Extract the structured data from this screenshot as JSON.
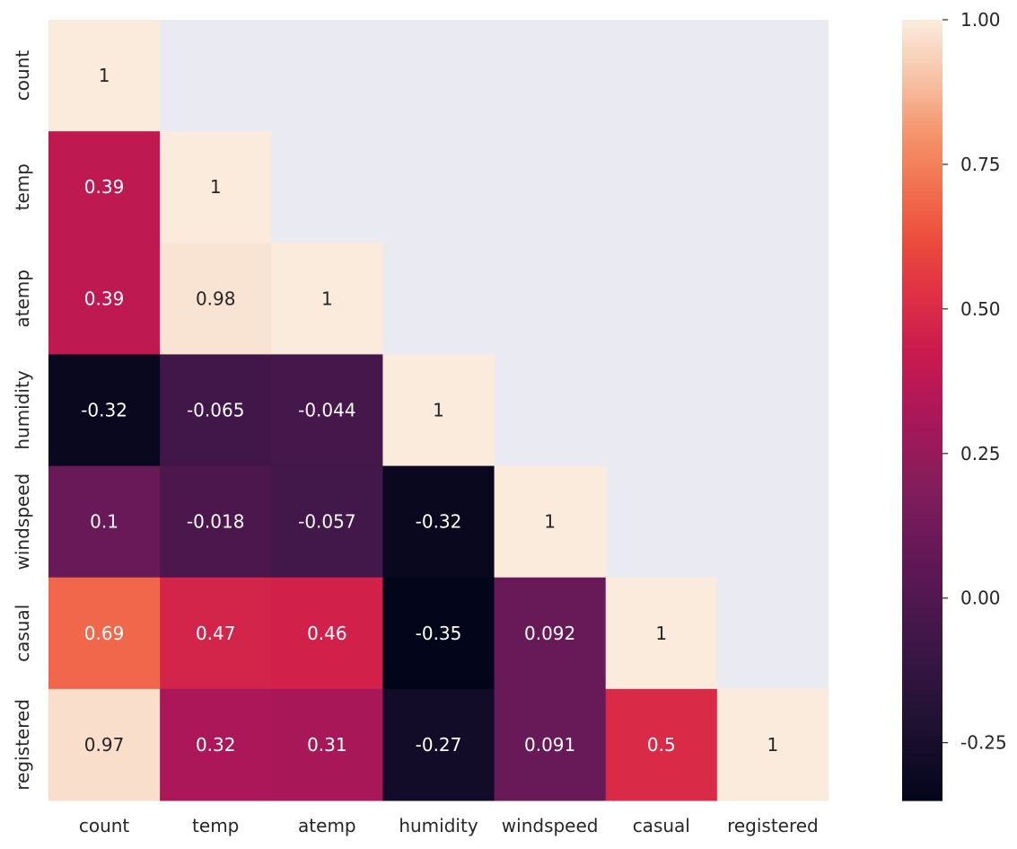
{
  "chart_data": {
    "type": "heatmap",
    "title": "",
    "xlabel": "",
    "ylabel": "",
    "rows": [
      "count",
      "temp",
      "atemp",
      "humidity",
      "windspeed",
      "casual",
      "registered"
    ],
    "columns": [
      "count",
      "temp",
      "atemp",
      "humidity",
      "windspeed",
      "casual",
      "registered"
    ],
    "mask": "upper-triangle",
    "values": [
      [
        1,
        null,
        null,
        null,
        null,
        null,
        null
      ],
      [
        0.39,
        1,
        null,
        null,
        null,
        null,
        null
      ],
      [
        0.39,
        0.98,
        1,
        null,
        null,
        null,
        null
      ],
      [
        -0.32,
        -0.065,
        -0.044,
        1,
        null,
        null,
        null
      ],
      [
        0.1,
        -0.018,
        -0.057,
        -0.32,
        1,
        null,
        null
      ],
      [
        0.69,
        0.47,
        0.46,
        -0.35,
        0.092,
        1,
        null
      ],
      [
        0.97,
        0.32,
        0.31,
        -0.27,
        0.091,
        0.5,
        1
      ]
    ],
    "annotations": [
      [
        "1",
        "",
        "",
        "",
        "",
        "",
        ""
      ],
      [
        "0.39",
        "1",
        "",
        "",
        "",
        "",
        ""
      ],
      [
        "0.39",
        "0.98",
        "1",
        "",
        "",
        "",
        ""
      ],
      [
        "-0.32",
        "-0.065",
        "-0.044",
        "1",
        "",
        "",
        ""
      ],
      [
        "0.1",
        "-0.018",
        "-0.057",
        "-0.32",
        "1",
        "",
        ""
      ],
      [
        "0.69",
        "0.47",
        "0.46",
        "-0.35",
        "0.092",
        "1",
        ""
      ],
      [
        "0.97",
        "0.32",
        "0.31",
        "-0.27",
        "0.091",
        "0.5",
        "1"
      ]
    ],
    "colorbar": {
      "colormap": "rocket",
      "vmin": -0.35,
      "vmax": 1.0,
      "ticks": [
        1.0,
        0.75,
        0.5,
        0.25,
        0.0,
        -0.25
      ],
      "tick_labels": [
        "1.00",
        "0.75",
        "0.50",
        "0.25",
        "0.00",
        "-0.25"
      ]
    },
    "masked_color": "#eaeaf2",
    "grid": false,
    "legend": "colorbar-right"
  }
}
